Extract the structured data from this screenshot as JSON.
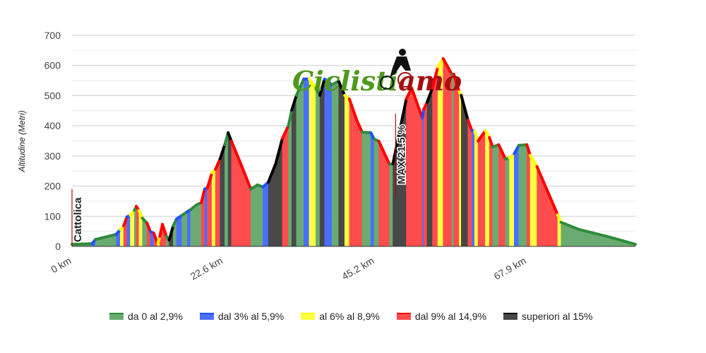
{
  "chart_data": {
    "type": "area",
    "title": "",
    "ylabel": "Altitudine (Metri)",
    "xlabel": "",
    "xlim": [
      0,
      84.1
    ],
    "ylim": [
      0,
      700
    ],
    "y_ticks": [
      "0",
      "100",
      "200",
      "300",
      "400",
      "500",
      "600",
      "700"
    ],
    "x_ticks": [
      {
        "value": 0,
        "label": "0 km"
      },
      {
        "value": 22.6,
        "label": "22.6 km"
      },
      {
        "value": 45.2,
        "label": "45.2 km"
      },
      {
        "value": 67.9,
        "label": "67.9 km"
      }
    ],
    "grid": true,
    "legend_position": "bottom",
    "classes": {
      "g": {
        "label": "da 0 al 2,9%",
        "line": "#2e8b3a",
        "fill": "#6aab72"
      },
      "b": {
        "label": "dal 3% al 5,9%",
        "line": "#1f4fff",
        "fill": "#4a6fff"
      },
      "y": {
        "label": "al 6% al 8,9%",
        "line": "#ffff00",
        "fill": "#ffff40"
      },
      "r": {
        "label": "dal 9% al 14,9%",
        "line": "#ff0000",
        "fill": "#ff4c4c"
      },
      "k": {
        "label": "superiori al 15%",
        "line": "#000000",
        "fill": "#484848"
      }
    },
    "legend_order": [
      "g",
      "b",
      "y",
      "r",
      "k"
    ],
    "points": [
      [
        0,
        7,
        "g"
      ],
      [
        3.0,
        9,
        "g"
      ],
      [
        3.5,
        23,
        "b"
      ],
      [
        6.6,
        40,
        "g"
      ],
      [
        7.2,
        56,
        "b"
      ],
      [
        7.7,
        68,
        "y"
      ],
      [
        8.2,
        98,
        "r"
      ],
      [
        8.7,
        103,
        "b"
      ],
      [
        9.3,
        119,
        "y"
      ],
      [
        9.6,
        133,
        "g"
      ],
      [
        10.0,
        119,
        "r"
      ],
      [
        10.5,
        94,
        "y"
      ],
      [
        11.2,
        77,
        "g"
      ],
      [
        11.7,
        49,
        "r"
      ],
      [
        12.2,
        44,
        "b"
      ],
      [
        12.8,
        9,
        "r"
      ],
      [
        13.1,
        33,
        "y"
      ],
      [
        13.5,
        73,
        "r"
      ],
      [
        14.1,
        33,
        "r"
      ],
      [
        14.5,
        21,
        "g"
      ],
      [
        15.1,
        68,
        "k"
      ],
      [
        15.6,
        91,
        "g"
      ],
      [
        16.4,
        103,
        "b"
      ],
      [
        17.2,
        115,
        "g"
      ],
      [
        17.7,
        122,
        "b"
      ],
      [
        18.6,
        138,
        "g"
      ],
      [
        19.3,
        145,
        "g"
      ],
      [
        19.8,
        190,
        "r"
      ],
      [
        20.2,
        194,
        "b"
      ],
      [
        20.9,
        244,
        "r"
      ],
      [
        21.4,
        255,
        "y"
      ],
      [
        22.1,
        290,
        "r"
      ],
      [
        22.8,
        337,
        "k"
      ],
      [
        23.3,
        377,
        "g"
      ],
      [
        23.8,
        349,
        "k"
      ],
      [
        25.1,
        279,
        "r"
      ],
      [
        26.7,
        190,
        "r"
      ],
      [
        27.7,
        204,
        "g"
      ],
      [
        28.5,
        197,
        "g"
      ],
      [
        29.3,
        213,
        "b"
      ],
      [
        30.4,
        274,
        "k"
      ],
      [
        31.4,
        358,
        "k"
      ],
      [
        32.3,
        400,
        "r"
      ],
      [
        32.8,
        452,
        "g"
      ],
      [
        33.5,
        501,
        "k"
      ],
      [
        34.6,
        555,
        "g"
      ],
      [
        35.4,
        555,
        "b"
      ],
      [
        36.4,
        525,
        "y"
      ],
      [
        37.0,
        501,
        "g"
      ],
      [
        37.7,
        555,
        "k"
      ],
      [
        38.8,
        536,
        "b"
      ],
      [
        39.8,
        548,
        "g"
      ],
      [
        40.7,
        501,
        "k"
      ],
      [
        41.4,
        489,
        "y"
      ],
      [
        42.5,
        419,
        "r"
      ],
      [
        43.3,
        379,
        "r"
      ],
      [
        44.6,
        377,
        "g"
      ],
      [
        45.1,
        356,
        "b"
      ],
      [
        45.8,
        349,
        "g"
      ],
      [
        47.4,
        272,
        "r"
      ],
      [
        47.9,
        274,
        "g"
      ],
      [
        49.9,
        489,
        "k"
      ],
      [
        50.7,
        525,
        "r"
      ],
      [
        52.3,
        426,
        "r"
      ],
      [
        52.5,
        454,
        "b"
      ],
      [
        53.0,
        478,
        "r"
      ],
      [
        53.8,
        525,
        "k"
      ],
      [
        54.6,
        595,
        "r"
      ],
      [
        55.4,
        623,
        "y"
      ],
      [
        56.7,
        571,
        "r"
      ],
      [
        57.0,
        571,
        "g"
      ],
      [
        57.8,
        513,
        "r"
      ],
      [
        58.1,
        501,
        "y"
      ],
      [
        59.1,
        419,
        "k"
      ],
      [
        59.7,
        384,
        "r"
      ],
      [
        60.1,
        382,
        "b"
      ],
      [
        60.6,
        349,
        "y"
      ],
      [
        61.7,
        384,
        "r"
      ],
      [
        62.3,
        361,
        "y"
      ],
      [
        62.8,
        330,
        "r"
      ],
      [
        63.7,
        337,
        "g"
      ],
      [
        64.7,
        290,
        "r"
      ],
      [
        65.3,
        293,
        "g"
      ],
      [
        66.0,
        307,
        "y"
      ],
      [
        66.7,
        335,
        "b"
      ],
      [
        67.9,
        337,
        "g"
      ],
      [
        68.4,
        302,
        "r"
      ],
      [
        69.4,
        265,
        "y"
      ],
      [
        72.5,
        105,
        "r"
      ],
      [
        73.0,
        80,
        "y"
      ],
      [
        75.7,
        56,
        "g"
      ],
      [
        79.9,
        33,
        "g"
      ],
      [
        84.1,
        7,
        "g"
      ]
    ],
    "annotations": [
      {
        "km": 0,
        "alt": 190,
        "label": "Cattolica"
      },
      {
        "km": 48.3,
        "alt": 440,
        "label": "MAX 21.5 %"
      }
    ]
  },
  "logo": {
    "part1": "Ciclisti",
    "part2": "amo"
  }
}
